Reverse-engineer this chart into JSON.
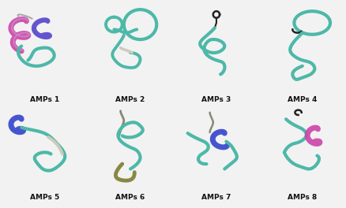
{
  "labels": [
    "AMPs 1",
    "AMPs 2",
    "AMPs 3",
    "AMPs 4",
    "AMPs 5",
    "AMPs 6",
    "AMPs 7",
    "AMPs 8"
  ],
  "nrows": 2,
  "ncols": 4,
  "figsize": [
    4.39,
    2.64
  ],
  "dpi": 100,
  "background_color": "#f2f2f2",
  "label_fontsize": 6.5,
  "label_fontweight": "bold",
  "label_color": "#111111",
  "panel_bg": "#f2f2f2",
  "teal": "#4db8a8",
  "magenta": "#cc44aa",
  "purple": "#5544cc",
  "blue": "#3344cc",
  "gray": "#888877",
  "olive": "#888844",
  "dark": "#222222",
  "white_gray": "#ccccbb"
}
